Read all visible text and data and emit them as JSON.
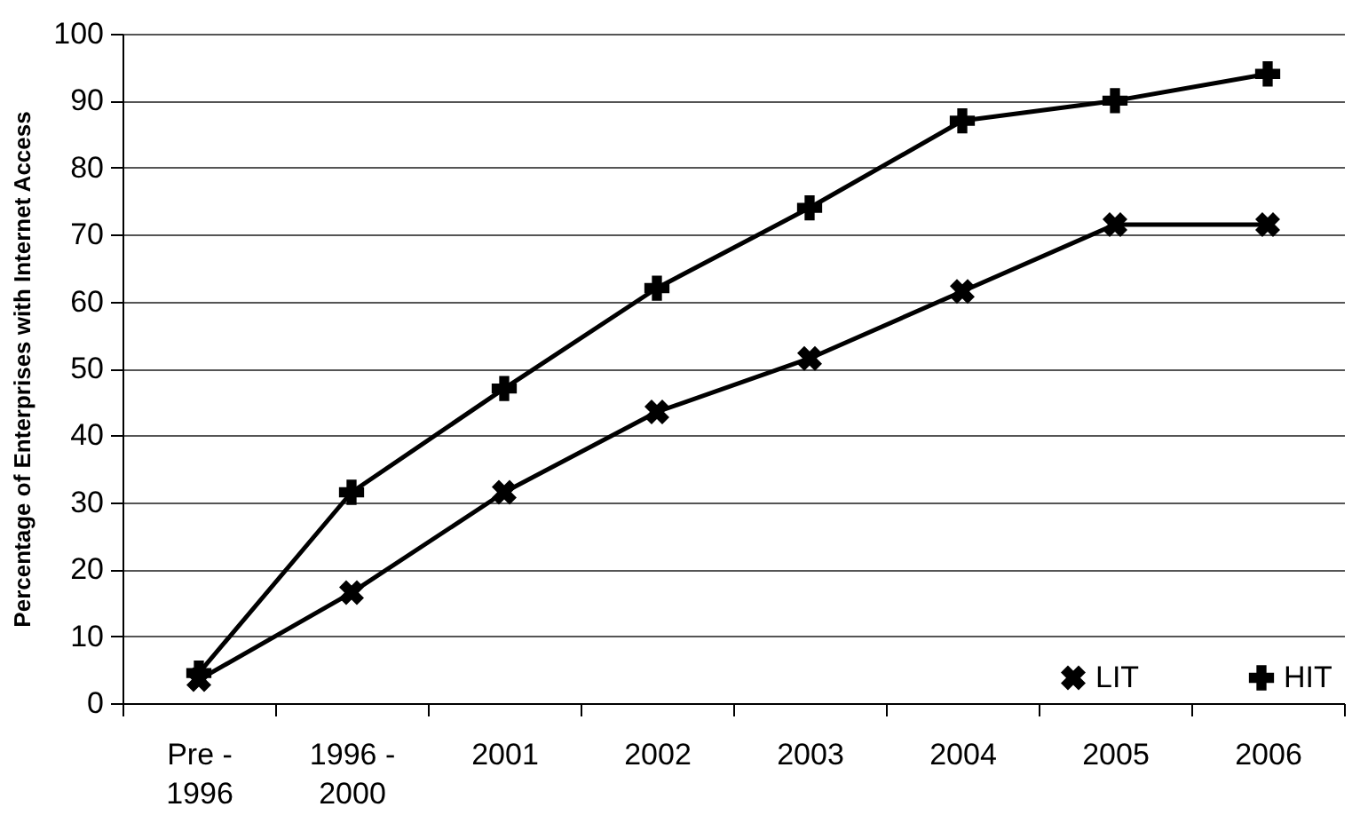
{
  "chart_data": {
    "type": "line",
    "ylabel": "Percentage of Enterprises with Internet Access",
    "categories": [
      "Pre - 1996",
      "1996 - 2000",
      "2001",
      "2002",
      "2003",
      "2004",
      "2005",
      "2006"
    ],
    "series": [
      {
        "name": "LIT",
        "color": "#000000",
        "marker": "cross",
        "values": [
          3.5,
          16.5,
          31.5,
          43.5,
          51.5,
          61.5,
          71.5,
          71.5
        ]
      },
      {
        "name": "HIT",
        "color": "#000000",
        "marker": "plus",
        "values": [
          4.5,
          31.5,
          47,
          62,
          74,
          87,
          90,
          94
        ]
      }
    ],
    "ylim": [
      0,
      100
    ],
    "yticks": [
      0,
      10,
      20,
      30,
      40,
      50,
      60,
      70,
      80,
      90,
      100
    ],
    "grid": "y",
    "legend": "bottom right",
    "line_style": "solid"
  }
}
